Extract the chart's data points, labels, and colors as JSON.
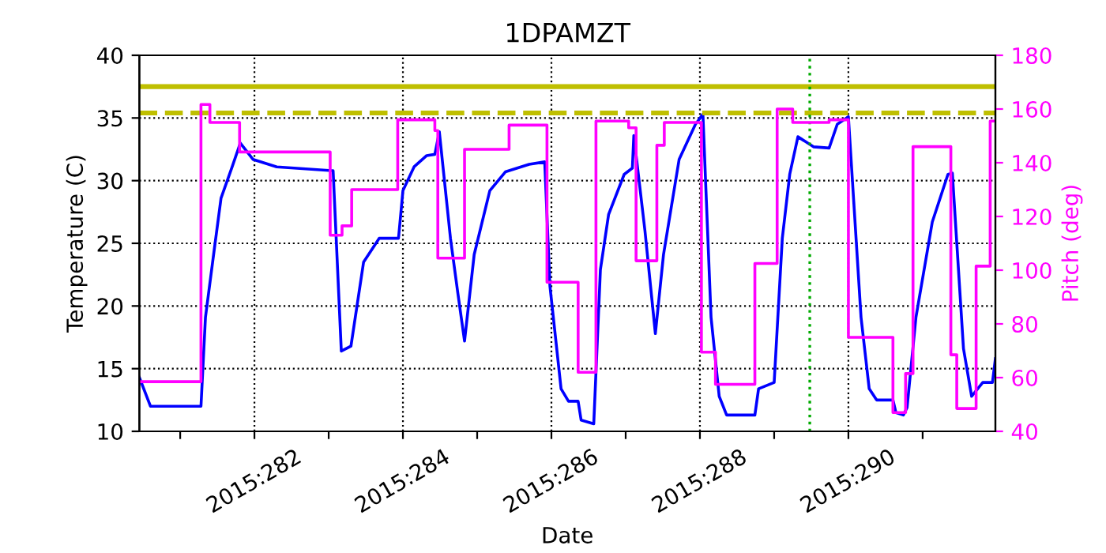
{
  "chart_data": {
    "type": "line",
    "title": "1DPAMZT",
    "xlabel": "Date",
    "ylabel": "Temperature (C)",
    "y2label": "Pitch (deg)",
    "xlim": [
      "2015-10-07T10:48",
      "2015-10-18T23:31"
    ],
    "xticks": [
      {
        "value": "2015-10-08",
        "label": null
      },
      {
        "value": "2015-10-09",
        "label": "2015:282"
      },
      {
        "value": "2015-10-10",
        "label": null
      },
      {
        "value": "2015-10-11",
        "label": "2015:284"
      },
      {
        "value": "2015-10-12",
        "label": null
      },
      {
        "value": "2015-10-13",
        "label": "2015:286"
      },
      {
        "value": "2015-10-14",
        "label": null
      },
      {
        "value": "2015-10-15",
        "label": "2015:288"
      },
      {
        "value": "2015-10-16",
        "label": null
      },
      {
        "value": "2015-10-17",
        "label": "2015:290"
      },
      {
        "value": "2015-10-18",
        "label": null
      }
    ],
    "ylim": [
      10,
      40
    ],
    "yticks": [
      10,
      15,
      20,
      25,
      30,
      35,
      40
    ],
    "y2lim": [
      40,
      180
    ],
    "y2ticks": [
      40,
      60,
      80,
      100,
      120,
      140,
      160,
      180
    ],
    "grid": true,
    "ref_lines": [
      {
        "axis": "y",
        "value": 37.5,
        "color": "#bfbf00",
        "line_style": "solid"
      },
      {
        "axis": "y",
        "value": 35.4,
        "color": "#bfbf00",
        "line_style": "dashed"
      },
      {
        "axis": "x",
        "value": "2015-10-16T11:31",
        "color": "#00aa00",
        "line_style": "dotted"
      }
    ],
    "series": [
      {
        "color": "#0000ff",
        "x": [
          "2015-10-07T10:48",
          "2015-10-07T14:24",
          "2015-10-08T06:43",
          "2015-10-08T08:10",
          "2015-10-08T10:48",
          "2015-10-08T13:12",
          "2015-10-08T16:48",
          "2015-10-08T19:26",
          "2015-10-08T23:31",
          "2015-10-09T07:12",
          "2015-10-10T00:58",
          "2015-10-10T01:26",
          "2015-10-10T04:05",
          "2015-10-10T07:12",
          "2015-10-10T11:17",
          "2015-10-10T16:19",
          "2015-10-10T22:34",
          "2015-10-11T00:00",
          "2015-10-11T03:36",
          "2015-10-11T07:41",
          "2015-10-11T10:19",
          "2015-10-11T11:46",
          "2015-10-11T15:22",
          "2015-10-11T17:46",
          "2015-10-11T19:55",
          "2015-10-11T23:02",
          "2015-10-12T04:05",
          "2015-10-12T09:07",
          "2015-10-12T16:48",
          "2015-10-12T21:50",
          "2015-10-12T23:31",
          "2015-10-13T03:07",
          "2015-10-13T05:31",
          "2015-10-13T08:38",
          "2015-10-13T09:36",
          "2015-10-13T13:41",
          "2015-10-13T15:50",
          "2015-10-13T18:29",
          "2015-10-13T23:31",
          "2015-10-14T02:10",
          "2015-10-14T02:38",
          "2015-10-14T06:14",
          "2015-10-14T09:36",
          "2015-10-14T12:14",
          "2015-10-14T17:17",
          "2015-10-14T22:34",
          "2015-10-15T00:58",
          "2015-10-15T03:36",
          "2015-10-15T06:14",
          "2015-10-15T08:38",
          "2015-10-15T17:46",
          "2015-10-15T18:58",
          "2015-10-16T00:00",
          "2015-10-16T02:38",
          "2015-10-16T05:02",
          "2015-10-16T07:41",
          "2015-10-16T12:43",
          "2015-10-16T17:46",
          "2015-10-16T20:24",
          "2015-10-17T00:00",
          "2015-10-17T04:05",
          "2015-10-17T06:43",
          "2015-10-17T09:07",
          "2015-10-17T14:24",
          "2015-10-17T15:22",
          "2015-10-17T17:46",
          "2015-10-17T18:58",
          "2015-10-17T21:50",
          "2015-10-18T03:07",
          "2015-10-18T08:10",
          "2015-10-18T09:36",
          "2015-10-18T13:12",
          "2015-10-18T15:50",
          "2015-10-18T19:26",
          "2015-10-18T22:34",
          "2015-10-18T23:31"
        ],
        "values": [
          14.3,
          12.0,
          12.0,
          19.1,
          24.1,
          28.6,
          31.1,
          33.0,
          31.7,
          31.1,
          30.8,
          30.8,
          16.4,
          16.8,
          23.5,
          25.4,
          25.4,
          29.2,
          31.1,
          32.0,
          32.1,
          33.9,
          25.4,
          21.0,
          17.2,
          24.1,
          29.2,
          30.7,
          31.3,
          31.5,
          21.6,
          13.4,
          12.4,
          12.4,
          10.9,
          10.6,
          22.9,
          27.3,
          30.5,
          31.0,
          33.6,
          26.0,
          17.8,
          24.1,
          31.7,
          34.5,
          35.3,
          19.1,
          12.8,
          11.3,
          11.3,
          13.4,
          13.9,
          25.4,
          30.5,
          33.5,
          32.7,
          32.6,
          34.5,
          35.1,
          19.1,
          13.4,
          12.5,
          12.5,
          11.5,
          11.3,
          11.9,
          19.1,
          26.7,
          30.5,
          30.6,
          16.6,
          12.8,
          13.9,
          13.9,
          15.8
        ]
      },
      {
        "type": "step",
        "axis": "y2",
        "color": "#ff00ff",
        "x": [
          "2015-10-07T10:48",
          "2015-10-08T06:43",
          "2015-10-08T09:36",
          "2015-10-08T19:12",
          "2015-10-10T00:29",
          "2015-10-10T04:19",
          "2015-10-10T07:26",
          "2015-10-10T22:19",
          "2015-10-11T10:19",
          "2015-10-11T11:17",
          "2015-10-11T19:55",
          "2015-10-12T10:19",
          "2015-10-12T22:34",
          "2015-10-13T08:38",
          "2015-10-13T14:24",
          "2015-10-14T00:58",
          "2015-10-14T03:22",
          "2015-10-14T10:05",
          "2015-10-14T12:29",
          "2015-10-15T00:29",
          "2015-10-15T05:02",
          "2015-10-15T17:46",
          "2015-10-16T00:58",
          "2015-10-16T06:00",
          "2015-10-16T17:46",
          "2015-10-17T00:00",
          "2015-10-17T14:24",
          "2015-10-17T18:29",
          "2015-10-17T20:53",
          "2015-10-18T09:07",
          "2015-10-18T11:02",
          "2015-10-18T17:17",
          "2015-10-18T21:50",
          "2015-10-18T23:31"
        ],
        "values": [
          58.5,
          161.7,
          155,
          144,
          113,
          116.5,
          130,
          156,
          152,
          104.5,
          145,
          154,
          95.5,
          62,
          155.5,
          153,
          103.5,
          146.5,
          155,
          69.5,
          57.5,
          102.5,
          160,
          155,
          156,
          75,
          47,
          61.5,
          146,
          68.5,
          48.5,
          101.5,
          155.5,
          155.5
        ]
      }
    ]
  }
}
